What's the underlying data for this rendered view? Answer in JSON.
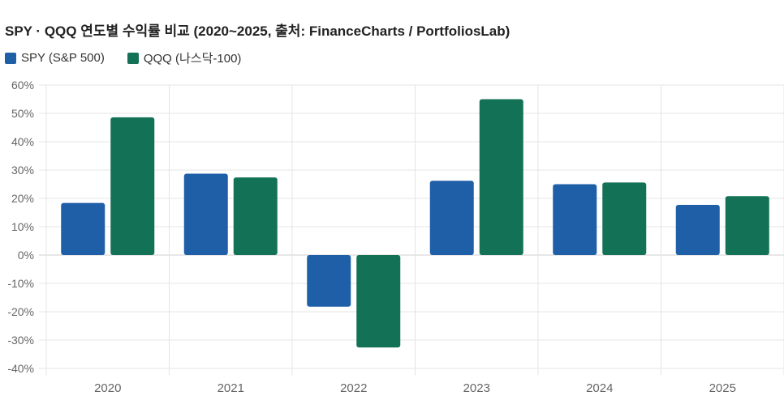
{
  "chart_data": {
    "type": "bar",
    "title": "SPY · QQQ 연도별 수익률 비교 (2020~2025, 출처: FinanceCharts / PortfoliosLab)",
    "categories": [
      "2020",
      "2021",
      "2022",
      "2023",
      "2024",
      "2025"
    ],
    "series": [
      {
        "name": "SPY (S&P 500)",
        "color": "#1f5fa8",
        "values": [
          18.4,
          28.7,
          -18.2,
          26.2,
          25.0,
          17.7
        ]
      },
      {
        "name": "QQQ (나스닥-100)",
        "color": "#137256",
        "values": [
          48.6,
          27.4,
          -32.6,
          55.0,
          25.6,
          20.8
        ]
      }
    ],
    "ylim": [
      -40,
      60
    ],
    "yticks": [
      "-40%",
      "-30%",
      "-20%",
      "-10%",
      "0%",
      "10%",
      "20%",
      "30%",
      "40%",
      "50%",
      "60%"
    ],
    "xlabel": "",
    "ylabel": "",
    "grid": true,
    "legend": "top-left"
  }
}
